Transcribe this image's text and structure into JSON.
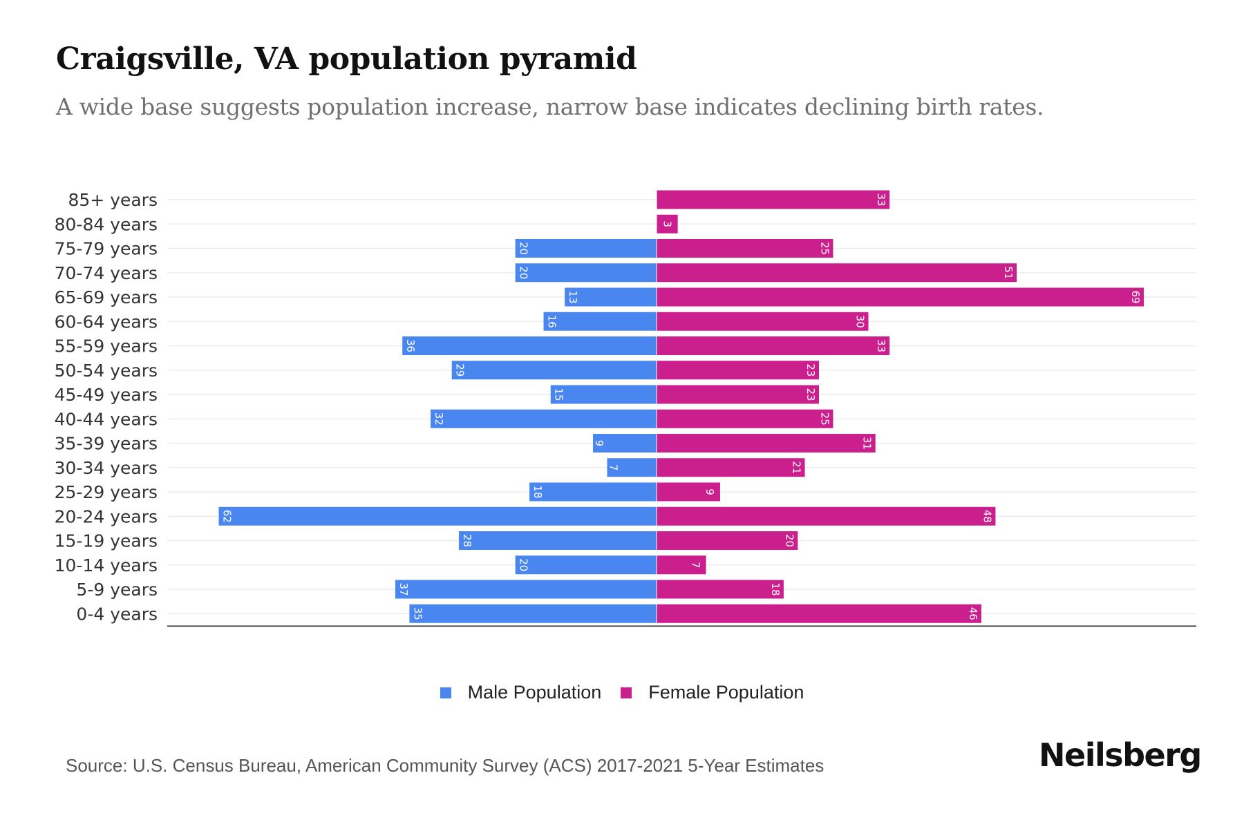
{
  "header": {
    "title": "Craigsville, VA population pyramid",
    "subtitle": "A wide base suggests population increase, narrow base indicates declining birth rates."
  },
  "legend": {
    "male_label": "Male Population",
    "female_label": "Female Population"
  },
  "footer": {
    "source": "Source: U.S. Census Bureau, American Community Survey (ACS) 2017-2021 5-Year Estimates",
    "brand": "Neilsberg"
  },
  "colors": {
    "male": "#4a86f0",
    "female": "#cc1f8e",
    "grid": "#ececec",
    "axis": "#222222"
  },
  "chart_data": {
    "type": "bar",
    "orientation": "horizontal-pyramid",
    "title": "Craigsville, VA population pyramid",
    "subtitle": "A wide base suggests population increase, narrow base indicates declining birth rates.",
    "xlabel": "",
    "ylabel": "",
    "grid": true,
    "legend_position": "bottom-center",
    "categories": [
      "85+ years",
      "80-84 years",
      "75-79 years",
      "70-74 years",
      "65-69 years",
      "60-64 years",
      "55-59 years",
      "50-54 years",
      "45-49 years",
      "40-44 years",
      "35-39 years",
      "30-34 years",
      "25-29 years",
      "20-24 years",
      "15-19 years",
      "10-14 years",
      "5-9 years",
      "0-4 years"
    ],
    "series": [
      {
        "name": "Male Population",
        "side": "left",
        "values": [
          0,
          0,
          20,
          20,
          13,
          16,
          36,
          29,
          15,
          32,
          9,
          7,
          18,
          62,
          28,
          20,
          37,
          35
        ]
      },
      {
        "name": "Female Population",
        "side": "right",
        "values": [
          33,
          3,
          25,
          51,
          69,
          30,
          33,
          23,
          23,
          25,
          31,
          21,
          9,
          48,
          20,
          7,
          18,
          46
        ]
      }
    ],
    "xlim": [
      -69,
      69
    ]
  }
}
